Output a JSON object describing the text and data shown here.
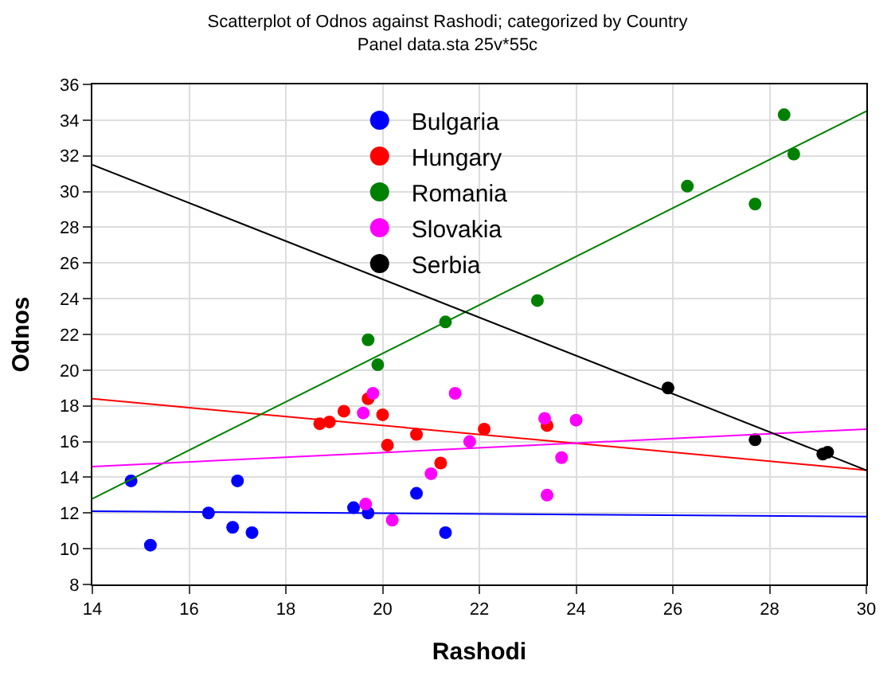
{
  "chart_data": {
    "type": "scatter",
    "title": "Scatterplot of Odnos against Rashodi; categorized by Country",
    "subtitle": "Panel data.sta 25v*55c",
    "xlabel": "Rashodi",
    "ylabel": "Odnos",
    "xlim": [
      14,
      30
    ],
    "xticks": [
      14,
      16,
      18,
      20,
      22,
      24,
      26,
      28,
      30
    ],
    "ylim": [
      8,
      36
    ],
    "yticks": [
      8,
      10,
      12,
      14,
      16,
      18,
      20,
      22,
      24,
      26,
      28,
      30,
      32,
      34,
      36
    ],
    "grid": true,
    "legend": "top",
    "marker": "circle",
    "series": [
      {
        "name": "Bulgaria",
        "color": "#0000ff",
        "x": [
          14.8,
          15.2,
          16.4,
          16.9,
          17.0,
          17.3,
          19.4,
          19.7,
          20.7,
          21.3
        ],
        "values": [
          13.8,
          10.2,
          12.0,
          11.2,
          13.8,
          10.9,
          12.3,
          12.0,
          13.1,
          10.9
        ]
      },
      {
        "name": "Hungary",
        "color": "#ff0000",
        "x": [
          18.7,
          18.9,
          19.2,
          19.7,
          20.0,
          20.1,
          20.7,
          21.2,
          22.1,
          23.4
        ],
        "values": [
          17.0,
          17.1,
          17.7,
          18.4,
          17.5,
          15.8,
          16.4,
          14.8,
          16.7,
          16.9
        ]
      },
      {
        "name": "Romania",
        "color": "#008000",
        "x": [
          19.7,
          19.9,
          21.3,
          23.2,
          26.3,
          27.7,
          28.3,
          28.5
        ],
        "values": [
          21.7,
          20.3,
          22.7,
          23.9,
          30.3,
          29.3,
          34.3,
          32.1
        ]
      },
      {
        "name": "Slovakia",
        "color": "#ff00ff",
        "x": [
          19.6,
          19.8,
          19.65,
          20.2,
          21.0,
          21.5,
          21.8,
          23.35,
          23.4,
          23.7,
          24.0
        ],
        "values": [
          17.6,
          18.7,
          12.5,
          11.6,
          14.2,
          18.7,
          16.0,
          17.3,
          13.0,
          15.1,
          17.2
        ]
      },
      {
        "name": "Serbia",
        "color": "#000000",
        "x": [
          25.9,
          27.7,
          29.1,
          29.2
        ],
        "values": [
          19.0,
          16.1,
          15.3,
          15.4
        ]
      },
      {
        "type": "line",
        "marker": "none",
        "color": "#0000ff",
        "x": [
          14,
          30
        ],
        "values": [
          12.1,
          11.8
        ]
      },
      {
        "type": "line",
        "marker": "none",
        "color": "#ff0000",
        "x": [
          14,
          30
        ],
        "values": [
          18.4,
          14.4
        ]
      },
      {
        "type": "line",
        "marker": "none",
        "color": "#008000",
        "x": [
          14,
          30
        ],
        "values": [
          12.8,
          34.5
        ]
      },
      {
        "type": "line",
        "marker": "none",
        "color": "#ff00ff",
        "x": [
          14,
          30
        ],
        "values": [
          14.6,
          16.7
        ]
      },
      {
        "type": "line",
        "marker": "none",
        "color": "#000000",
        "x": [
          14,
          30
        ],
        "values": [
          31.5,
          14.4
        ]
      }
    ]
  }
}
